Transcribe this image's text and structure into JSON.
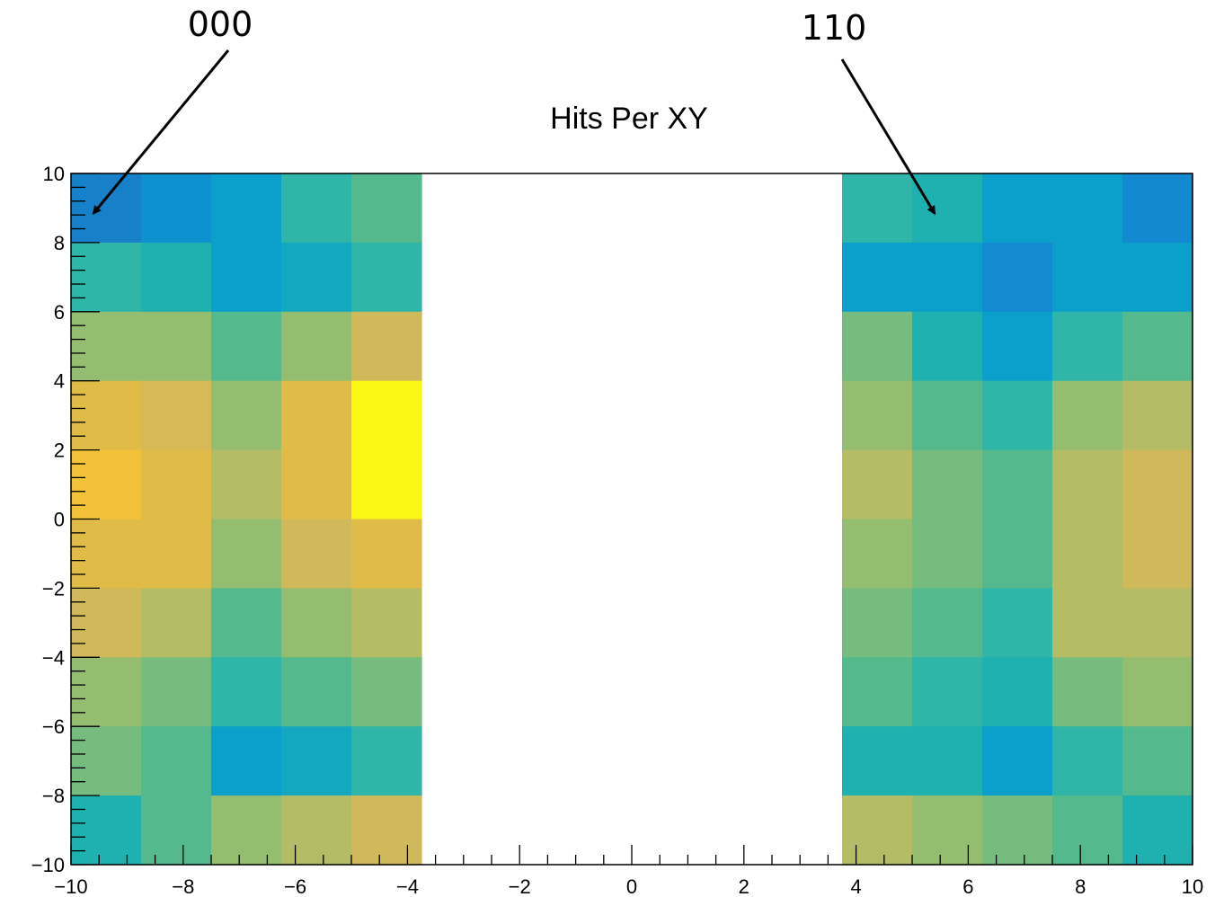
{
  "chart_data": {
    "type": "heatmap",
    "title": "Hits Per XY",
    "xlim": [
      -10,
      10
    ],
    "ylim": [
      -10,
      10
    ],
    "grid": false,
    "x_tick_labels": [
      "−10",
      "−8",
      "−6",
      "−4",
      "−2",
      "0",
      "2",
      "4",
      "6",
      "8",
      "10"
    ],
    "y_tick_labels": [
      "−10",
      "−8",
      "−6",
      "−4",
      "−2",
      "0",
      "2",
      "4",
      "6",
      "8",
      "10"
    ],
    "x_ticks": [
      -10,
      -8,
      -6,
      -4,
      -2,
      0,
      2,
      4,
      6,
      8,
      10
    ],
    "y_ticks": [
      -10,
      -8,
      -6,
      -4,
      -2,
      0,
      2,
      4,
      6,
      8,
      10
    ],
    "x_bin_edges": [
      -10,
      -8.75,
      -7.5,
      -6.25,
      -5,
      -3.75,
      3.75,
      5,
      6.25,
      7.5,
      8.75,
      10
    ],
    "y_bin_edges": [
      -10,
      -8,
      -6,
      -4,
      -2,
      0,
      2,
      4,
      6,
      8,
      10
    ],
    "colors_by_row_top_to_bottom": [
      [
        "#1680c8",
        "#0e91cf",
        "#0ba0cb",
        "#2fb6a8",
        "#55b98e",
        null,
        "#2fb6a8",
        "#1fb0b0",
        "#0ba0cb",
        "#0ba0cb",
        "#1289d0"
      ],
      [
        "#2fb6a8",
        "#1fb0b0",
        "#0ba0cb",
        "#13a8bf",
        "#2fb6a8",
        null,
        "#0ba0cb",
        "#0ba0cb",
        "#138ad1",
        "#0ba0cb",
        "#0ba0cb"
      ],
      [
        "#94bd6f",
        "#94bd6f",
        "#55b98e",
        "#94bd6f",
        "#d0b95b",
        null,
        "#75bc7e",
        "#1fb0b0",
        "#0ba0cb",
        "#2fb6a8",
        "#55b98e"
      ],
      [
        "#e0bb48",
        "#d7b958",
        "#94bd6f",
        "#e0bb48",
        "#f8f814",
        null,
        "#94bd6f",
        "#55b98e",
        "#2fb6a8",
        "#94bd6f",
        "#b4bc66"
      ],
      [
        "#f2c338",
        "#e0bb48",
        "#b4bc66",
        "#e0bb48",
        "#f8f814",
        null,
        "#b4bc66",
        "#75bc7e",
        "#55b98e",
        "#b4bc66",
        "#d0b95b"
      ],
      [
        "#e0bb48",
        "#e0bb48",
        "#94bd6f",
        "#d0b95b",
        "#e0bb48",
        null,
        "#94bd6f",
        "#75bc7e",
        "#55b98e",
        "#b4bc66",
        "#d0b95b"
      ],
      [
        "#d0b95b",
        "#b4bc66",
        "#55b98e",
        "#94bd6f",
        "#b4bc66",
        null,
        "#75bc7e",
        "#55b98e",
        "#2fb6a8",
        "#b4bc66",
        "#b4bc66"
      ],
      [
        "#94bd6f",
        "#75bc7e",
        "#2fb6a8",
        "#55b98e",
        "#75bc7e",
        null,
        "#55b98e",
        "#2fb6a8",
        "#1fb0b0",
        "#75bc7e",
        "#94bd6f"
      ],
      [
        "#75bc7e",
        "#55b98e",
        "#0ba0cb",
        "#13a8bf",
        "#2fb6a8",
        null,
        "#1fb0b0",
        "#1fb0b0",
        "#0ba0cb",
        "#2fb6a8",
        "#55b98e"
      ],
      [
        "#1fb0b0",
        "#55b98e",
        "#94bd6f",
        "#b4bc66",
        "#d0b95b",
        null,
        "#b4bc66",
        "#94bd6f",
        "#75bc7e",
        "#55b98e",
        "#1fb0b0"
      ]
    ],
    "annotations": [
      {
        "text": "000",
        "points_to": [
          -9.6,
          9.0
        ]
      },
      {
        "text": "110",
        "points_to": [
          5.4,
          9.0
        ]
      }
    ]
  }
}
